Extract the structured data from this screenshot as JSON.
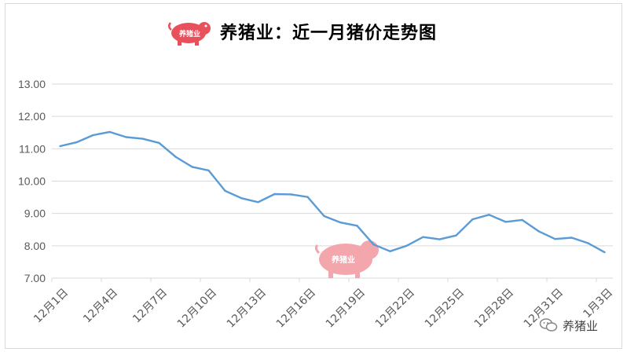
{
  "title": "养猪业：近一月猪价走势图",
  "logo_text": "养猪业",
  "watermark_text": "养猪业",
  "brand_label": "养猪业",
  "colors": {
    "line": "#5b9bd5",
    "logo": "#e8515b",
    "watermark": "#f4a6ad",
    "grid": "#d9d9d9"
  },
  "chart_data": {
    "type": "line",
    "title": "养猪业：近一月猪价走势图",
    "xlabel": "",
    "ylabel": "",
    "ylim": [
      7.0,
      13.0
    ],
    "yticks": [
      "7.00",
      "8.00",
      "9.00",
      "10.00",
      "11.00",
      "12.00",
      "13.00"
    ],
    "grid": true,
    "x_tick_labels": [
      "12月1日",
      "12月4日",
      "12月7日",
      "12月10日",
      "12月13日",
      "12月16日",
      "12月19日",
      "12月22日",
      "12月25日",
      "12月28日",
      "12月31日",
      "1月3日"
    ],
    "series": [
      {
        "values": [
          11.08,
          11.2,
          11.42,
          11.52,
          11.36,
          11.31,
          11.18,
          10.75,
          10.44,
          10.33,
          9.7,
          9.47,
          9.35,
          9.6,
          9.59,
          9.51,
          8.92,
          8.72,
          8.62,
          8.04,
          7.83,
          8.0,
          8.27,
          8.2,
          8.32,
          8.82,
          8.96,
          8.74,
          8.8,
          8.45,
          8.21,
          8.25,
          8.08,
          7.8
        ]
      }
    ]
  }
}
